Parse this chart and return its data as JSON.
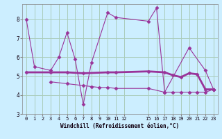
{
  "xlabel": "Windchill (Refroidissement éolien,°C)",
  "background_color": "#cceeff",
  "grid_color": "#aaccbb",
  "line_color": "#993399",
  "x_ticks": [
    0,
    1,
    2,
    3,
    4,
    5,
    6,
    7,
    8,
    9,
    10,
    11,
    12,
    15,
    16,
    17,
    18,
    19,
    20,
    21,
    22,
    23
  ],
  "ylim": [
    3,
    8.8
  ],
  "yticks": [
    3,
    4,
    5,
    6,
    7,
    8
  ],
  "line1_x": [
    0,
    1,
    3,
    4,
    5,
    6,
    7,
    8,
    10,
    11,
    15,
    16,
    17,
    20,
    22,
    23
  ],
  "line1_y": [
    8.0,
    5.5,
    5.3,
    6.0,
    7.3,
    5.9,
    3.5,
    5.7,
    8.35,
    8.1,
    7.9,
    8.6,
    4.15,
    6.5,
    5.3,
    4.3
  ],
  "line2_x": [
    0,
    3,
    5,
    7,
    10,
    11,
    15,
    17,
    18,
    19,
    20,
    21,
    22,
    23
  ],
  "line2_y": [
    5.2,
    5.2,
    5.2,
    5.15,
    5.2,
    5.2,
    5.25,
    5.2,
    5.05,
    4.95,
    5.15,
    5.1,
    4.3,
    4.3
  ],
  "line3_x": [
    3,
    5,
    7,
    8,
    9,
    10,
    11,
    15,
    17,
    18,
    19,
    20,
    21,
    22,
    23
  ],
  "line3_y": [
    4.7,
    4.6,
    4.5,
    4.45,
    4.4,
    4.4,
    4.35,
    4.35,
    4.15,
    4.15,
    4.15,
    4.15,
    4.15,
    4.15,
    4.3
  ]
}
